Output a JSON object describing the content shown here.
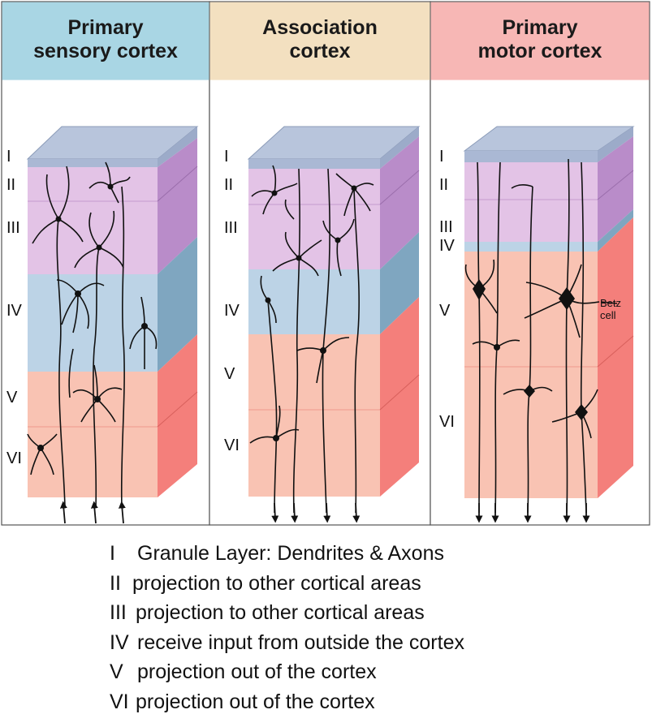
{
  "panels": [
    {
      "title_line1": "Primary",
      "title_line2": "sensory cortex",
      "color": "#a9d6e4"
    },
    {
      "title_line1": "Association",
      "title_line2": "cortex",
      "color": "#f3e0c0"
    },
    {
      "title_line1": "Primary",
      "title_line2": "motor cortex",
      "color": "#f7b7b5"
    }
  ],
  "layer_labels": {
    "sensory": [
      "I",
      "II",
      "III",
      "IV",
      "V",
      "VI"
    ],
    "association": [
      "I",
      "II",
      "III",
      "IV",
      "V",
      "VI"
    ],
    "motor": [
      "I",
      "II",
      "III",
      "IV",
      "V",
      "VI"
    ]
  },
  "betz_label": {
    "line1": "Betz",
    "line2": "cell"
  },
  "layer_colors": {
    "I": "#aab8d4",
    "II_III": "#e3c3e6",
    "IV": "#bcd3e6",
    "V_VI": "#f9c3b3",
    "side_purple": "#b98cc9",
    "side_blue": "#7fa6c0",
    "side_red": "#f47f7b"
  },
  "legend": [
    {
      "num": "I",
      "text": "Granule Layer: Dendrites & Axons"
    },
    {
      "num": "II",
      "text": "projection to other cortical areas"
    },
    {
      "num": "III",
      "text": "projection to other cortical areas"
    },
    {
      "num": "IV",
      "text": "receive input from outside the cortex"
    },
    {
      "num": "V",
      "text": "projection out of the cortex"
    },
    {
      "num": "VI",
      "text": "projection out of the cortex"
    }
  ]
}
